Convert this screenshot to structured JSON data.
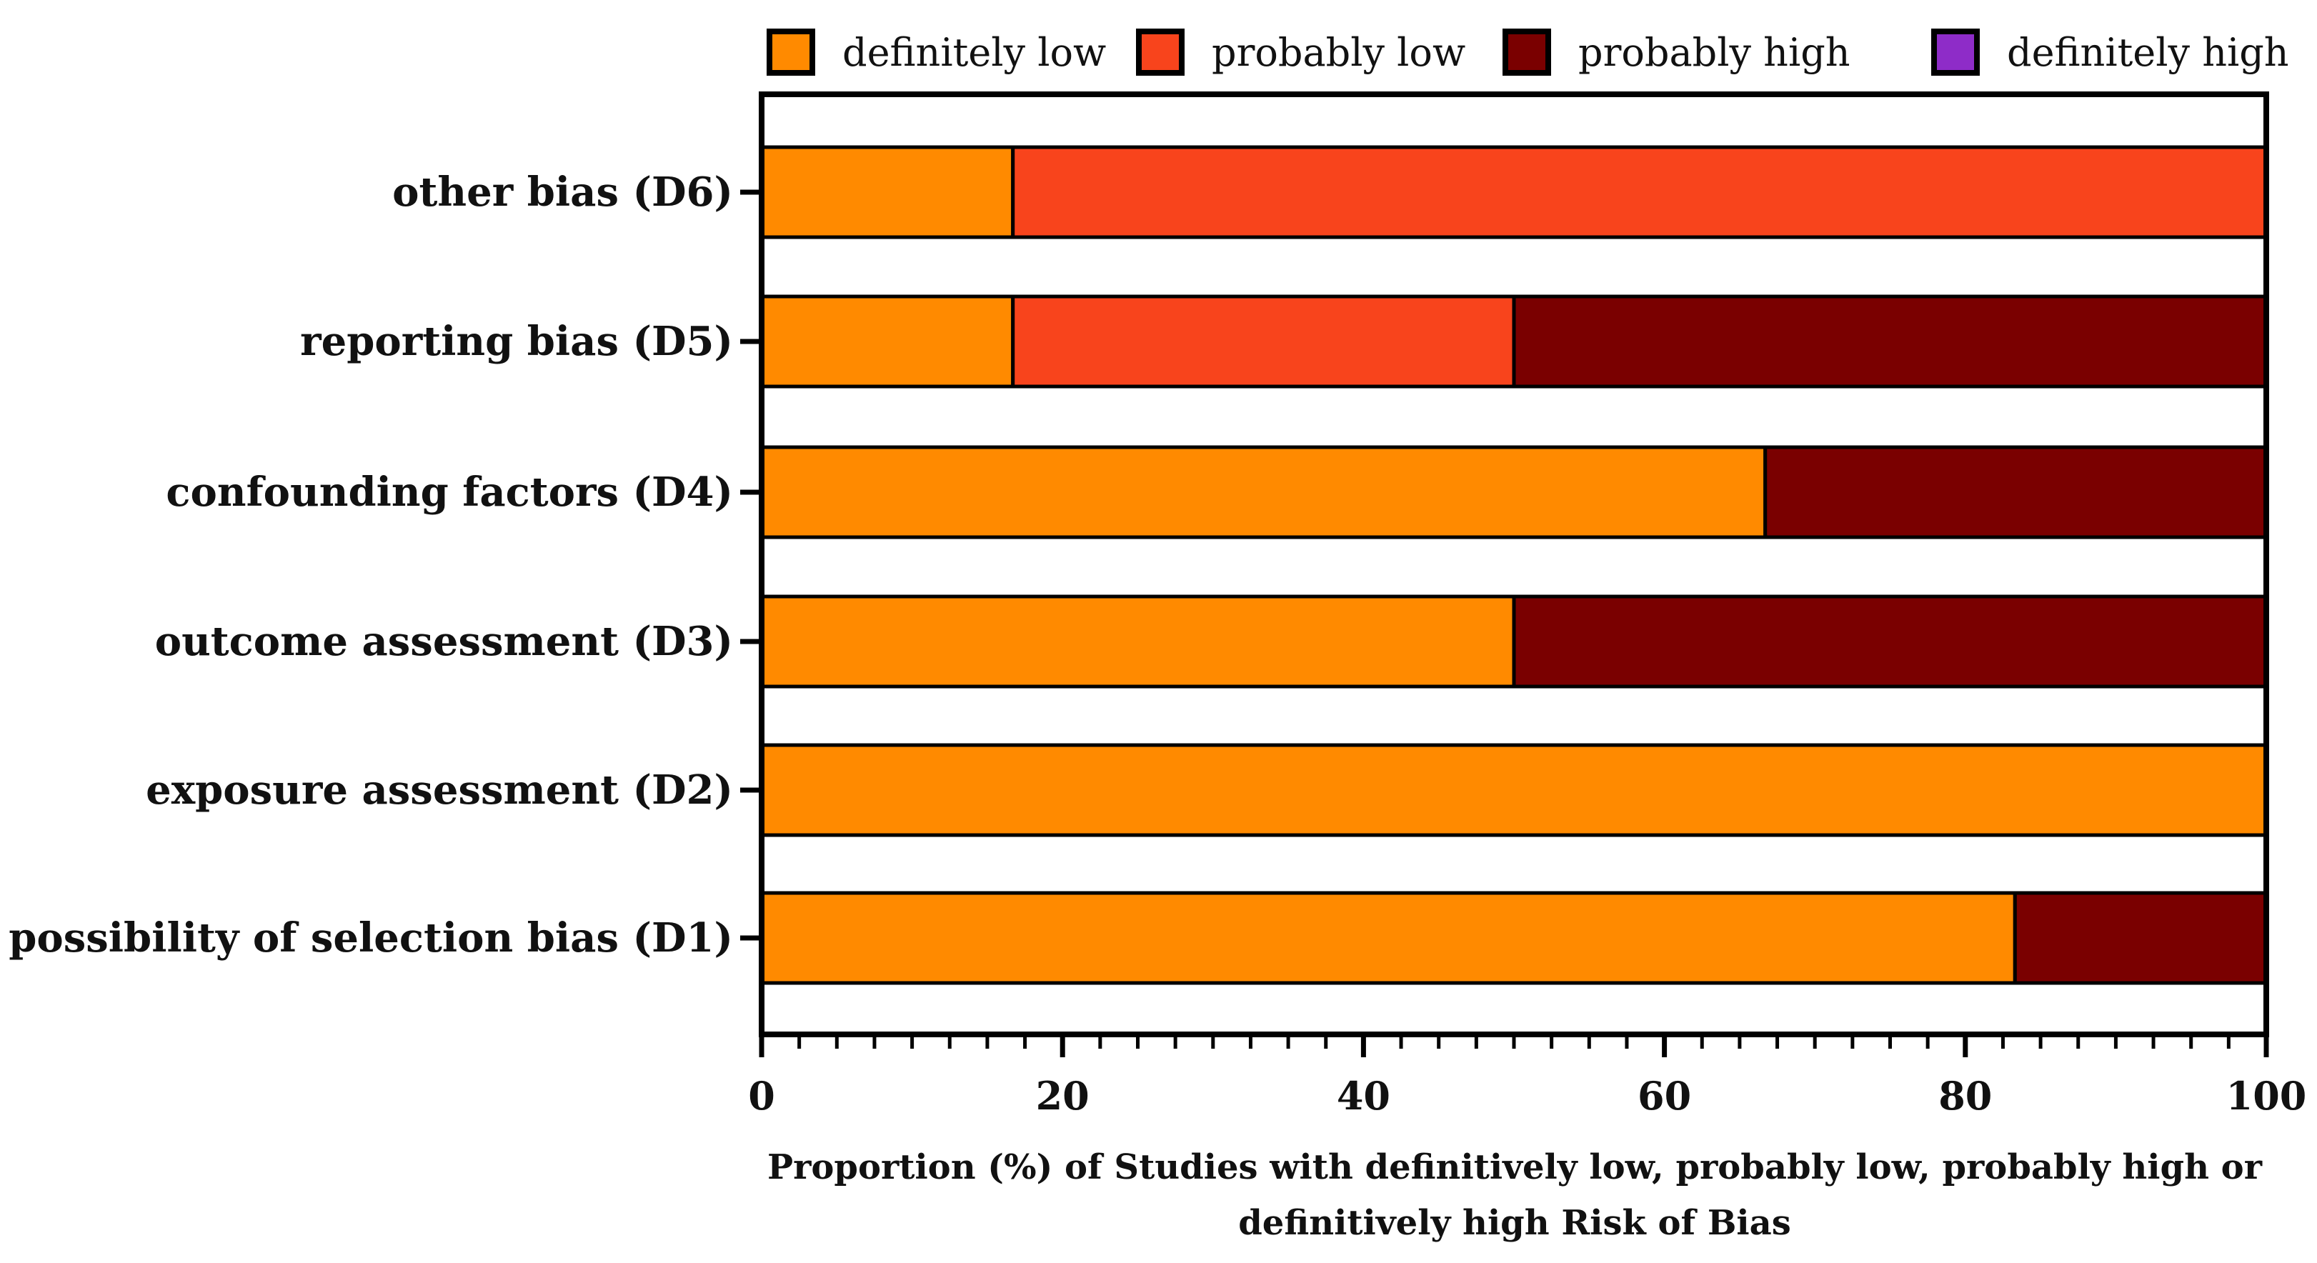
{
  "chart_data": {
    "type": "bar",
    "orientation": "horizontal",
    "stacked": true,
    "categories": [
      "other bias (D6)",
      "reporting bias (D5)",
      "confounding factors (D4)",
      "outcome assessment (D3)",
      "exposure assessment (D2)",
      "possibility of selection bias (D1)"
    ],
    "series": [
      {
        "name": "definitely low",
        "color": "#FF8A00",
        "values": [
          16.7,
          16.7,
          66.7,
          50,
          100,
          83.3
        ]
      },
      {
        "name": "probably low",
        "color": "#F8441C",
        "values": [
          83.3,
          33.3,
          0,
          0,
          0,
          0
        ]
      },
      {
        "name": "probably high",
        "color": "#7A0000",
        "values": [
          0,
          50,
          33.3,
          50,
          0,
          16.7
        ]
      },
      {
        "name": "definitely high",
        "color": "#8E2CC8",
        "values": [
          0,
          0,
          0,
          0,
          0,
          0
        ]
      }
    ],
    "xlim": [
      0,
      100
    ],
    "xticks": [
      "0",
      "20",
      "40",
      "60",
      "80",
      "100"
    ],
    "xlabel_lines": [
      "Proportion (%) of Studies with definitively low, probably low, probably high or",
      "definitively high Risk of Bias"
    ],
    "ylabel": "",
    "legend_position": "top",
    "grid": false
  }
}
